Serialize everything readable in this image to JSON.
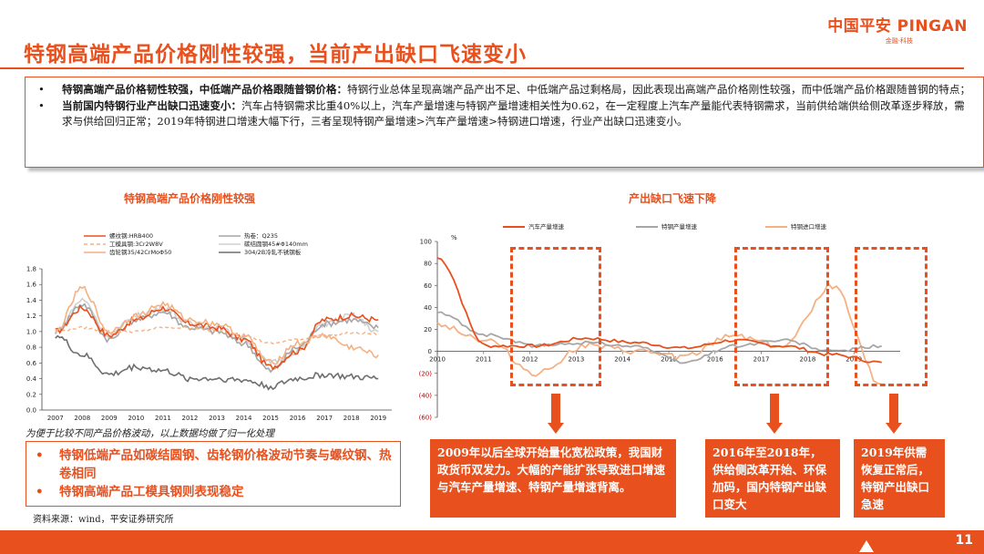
{
  "logo": {
    "main": "中国平安 PINGAN",
    "sub": "金融·科技"
  },
  "title": "特钢高端产品价格刚性较强，当前产出缺口飞速变小",
  "summary": {
    "bullet": "•",
    "items": [
      {
        "bold": "特钢高端产品价格韧性较强，中低端产品价格跟随普钢价格：",
        "text": "特钢行业总体呈现高端产品产出不足、中低端产品过剩格局，因此表现出高端产品价格刚性较强，而中低端产品价格跟随普钢的特点；"
      },
      {
        "bold": "当前国内特钢行业产出缺口迅速变小：",
        "text": "汽车占特钢需求比重40%以上，汽车产量增速与特钢产量增速相关性为0.62，在一定程度上汽车产量能代表特钢需求，当前供给端供给侧改革逐步释放，需求与供给回归正常；2019年特钢进口增速大幅下行，三者呈现特钢产量增速>汽车产量增速>特钢进口增速，行业产出缺口迅速变小。"
      }
    ]
  },
  "left_chart_title": "特钢高端产品价格刚性较强",
  "right_chart_title": "产出缺口飞速下降",
  "note": "为便于比较不同产品价格波动，以上数据均做了归一化处理",
  "bottom_box": {
    "bullet": "•",
    "items": [
      "特钢低端产品如碳结圆钢、齿轮钢价格波动节奏与螺纹钢、热卷相同",
      "特钢高端产品工模具钢则表现稳定"
    ]
  },
  "source": "资料来源：wind，平安证券研究所",
  "annotations": [
    "2009年以后全球开始量化宽松政策，我国财政货币双发力。大幅的产能扩张导致进口增速与汽车产量增速、特钢产量增速背离。",
    "2016年至2018年，供给侧改革开始、环保加码，国内特钢产出缺口变大",
    "2019年供需恢复正常后，特钢产出缺口急速"
  ],
  "page_number": "11",
  "colors": {
    "accent": "#e8501d",
    "gray": "#a6a6a6",
    "dark_gray": "#6e6e6e",
    "peach": "#f4b183"
  },
  "chart_data": [
    {
      "type": "line",
      "x_ticks": [
        "2007",
        "2008",
        "2009",
        "2010",
        "2011",
        "2012",
        "2013",
        "2014",
        "2015",
        "2016",
        "2017",
        "2018",
        "2019"
      ],
      "y_ticks": [
        "0.0",
        "0.2",
        "0.4",
        "0.6",
        "0.8",
        "1.0",
        "1.2",
        "1.4",
        "1.6",
        "1.8"
      ],
      "ylim": [
        0,
        1.8
      ],
      "legend": [
        "螺纹钢:HRB400",
        "热卷：Q235",
        "工模具钢:3Cr2W8V",
        "碳结圆钢45#Φ140mm",
        "齿轮钢35/42CrMoΦ50",
        "304/2B冷轧不锈钢板"
      ],
      "series": [
        {
          "name": "螺纹钢:HRB400",
          "values": [
            1.0,
            1.3,
            0.95,
            1.15,
            1.3,
            1.1,
            1.05,
            0.9,
            0.55,
            0.75,
            1.15,
            1.2,
            1.15
          ]
        },
        {
          "name": "热卷：Q235",
          "values": [
            1.0,
            1.35,
            0.9,
            1.15,
            1.25,
            1.05,
            1.0,
            0.85,
            0.5,
            0.8,
            1.1,
            1.15,
            1.05
          ]
        },
        {
          "name": "工模具钢:3Cr2W8V",
          "values": [
            1.0,
            1.05,
            1.0,
            1.0,
            1.05,
            1.05,
            1.0,
            0.95,
            0.85,
            0.9,
            0.95,
            0.98,
            0.97
          ]
        },
        {
          "name": "碳结圆钢45#Φ140mm",
          "values": [
            1.0,
            1.4,
            0.95,
            1.2,
            1.3,
            1.1,
            1.05,
            0.9,
            0.6,
            0.75,
            1.1,
            1.2,
            1.0
          ]
        },
        {
          "name": "齿轮钢35/42CrMoΦ50",
          "values": [
            1.0,
            1.55,
            1.0,
            1.2,
            1.35,
            1.15,
            1.1,
            0.95,
            0.6,
            0.85,
            0.95,
            0.8,
            0.7
          ]
        },
        {
          "name": "304/2B冷轧不锈钢板",
          "values": [
            0.95,
            0.7,
            0.45,
            0.55,
            0.5,
            0.4,
            0.4,
            0.38,
            0.3,
            0.4,
            0.45,
            0.42,
            0.4
          ]
        }
      ]
    },
    {
      "type": "line",
      "x_ticks": [
        "2010",
        "2011",
        "2012",
        "2013",
        "2014",
        "2015",
        "2016",
        "2017",
        "2018",
        "2019"
      ],
      "y_ticks": [
        "100",
        "80",
        "60",
        "40",
        "20",
        "0",
        "(20)",
        "(40)",
        "(60)"
      ],
      "y_unit": "%",
      "ylim": [
        -60,
        100
      ],
      "legend": [
        "汽车产量增速",
        "特钢产量增速",
        "特钢进口增速"
      ],
      "series": [
        {
          "name": "汽车产量增速",
          "values": [
            85,
            5,
            5,
            12,
            8,
            3,
            10,
            5,
            -3,
            -10
          ]
        },
        {
          "name": "特钢产量增速",
          "values": [
            35,
            15,
            5,
            8,
            5,
            -10,
            5,
            10,
            0,
            5
          ]
        },
        {
          "name": "特钢进口增速",
          "values": [
            25,
            10,
            -20,
            5,
            0,
            -5,
            15,
            5,
            60,
            -30
          ]
        }
      ]
    }
  ]
}
